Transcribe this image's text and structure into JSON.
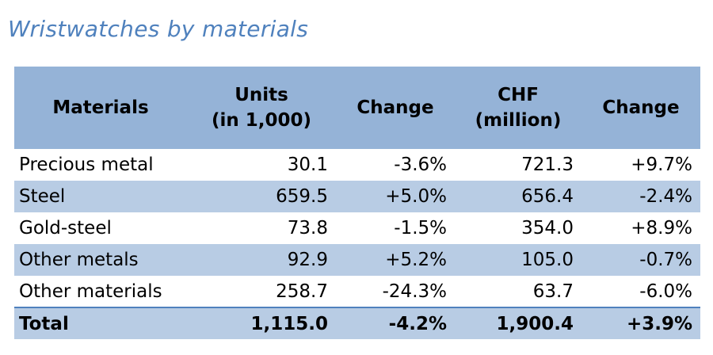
{
  "title": "Wristwatches by materials",
  "chart_data": {
    "type": "table",
    "title": "Wristwatches by materials",
    "columns": [
      {
        "key": "material",
        "lines": [
          "Materials"
        ]
      },
      {
        "key": "units",
        "lines": [
          "Units",
          "(in 1,000)"
        ]
      },
      {
        "key": "units_change",
        "lines": [
          "Change"
        ]
      },
      {
        "key": "chf",
        "lines": [
          "CHF",
          "(million)"
        ]
      },
      {
        "key": "chf_change",
        "lines": [
          "Change"
        ]
      }
    ],
    "rows": [
      {
        "material": "Precious metal",
        "units": "30.1",
        "units_change": "-3.6%",
        "chf": "721.3",
        "chf_change": "+9.7%"
      },
      {
        "material": "Steel",
        "units": "659.5",
        "units_change": "+5.0%",
        "chf": "656.4",
        "chf_change": "-2.4%"
      },
      {
        "material": "Gold-steel",
        "units": "73.8",
        "units_change": "-1.5%",
        "chf": "354.0",
        "chf_change": "+8.9%"
      },
      {
        "material": "Other metals",
        "units": "92.9",
        "units_change": "+5.2%",
        "chf": "105.0",
        "chf_change": "-0.7%"
      },
      {
        "material": "Other materials",
        "units": "258.7",
        "units_change": "-24.3%",
        "chf": "63.7",
        "chf_change": "-6.0%"
      }
    ],
    "total": {
      "material": "Total",
      "units": "1,115.0",
      "units_change": "-4.2%",
      "chf": "1,900.4",
      "chf_change": "+3.9%"
    }
  },
  "colors": {
    "title": "#4f81bd",
    "header_bg": "#95b3d7",
    "row_shade": "#b8cce4",
    "row_plain": "#ffffff"
  }
}
